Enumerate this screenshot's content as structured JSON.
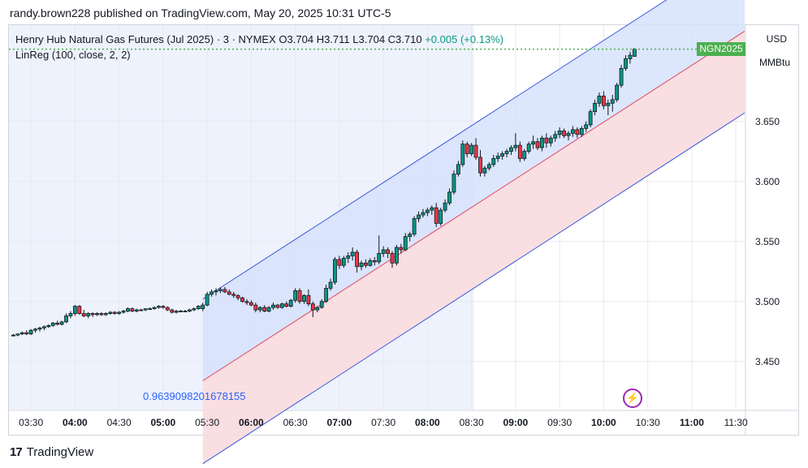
{
  "header": {
    "publish_line": "randy.brown228 published on TradingView.com, May 20, 2025 10:31 UTC-5"
  },
  "legend": {
    "symbol": "Henry Hub Natural Gas Futures (Jul 2025) · 3 · NYMEX",
    "open": "O3.704",
    "high": "H3.711",
    "low": "L3.704",
    "close": "C3.710",
    "change": "+0.005 (+0.13%)",
    "indicator": "LinReg (100, close, 2, 2)"
  },
  "price_axis": {
    "currency": "USD",
    "unit": "MMBtu",
    "ticks": [
      "3.650",
      "3.600",
      "3.550",
      "3.500",
      "3.450"
    ]
  },
  "price_tag": "NGN2025",
  "correlation_label": "0.9639098201678155",
  "time_axis": {
    "ticks": [
      {
        "label": "03:30",
        "bold": false
      },
      {
        "label": "04:00",
        "bold": true
      },
      {
        "label": "04:30",
        "bold": false
      },
      {
        "label": "05:00",
        "bold": true
      },
      {
        "label": "05:30",
        "bold": false
      },
      {
        "label": "06:00",
        "bold": true
      },
      {
        "label": "06:30",
        "bold": false
      },
      {
        "label": "07:00",
        "bold": true
      },
      {
        "label": "07:30",
        "bold": false
      },
      {
        "label": "08:00",
        "bold": true
      },
      {
        "label": "08:30",
        "bold": false
      },
      {
        "label": "09:00",
        "bold": true
      },
      {
        "label": "09:30",
        "bold": false
      },
      {
        "label": "10:00",
        "bold": true
      },
      {
        "label": "10:30",
        "bold": false
      },
      {
        "label": "11:00",
        "bold": true
      },
      {
        "label": "11:30",
        "bold": false
      }
    ]
  },
  "footer": {
    "brand": "TradingView"
  },
  "colors": {
    "up": "#089981",
    "down": "#f23645",
    "candle_body": "#131722",
    "channel_upper_fill": "#d6e2fb",
    "channel_lower_fill": "#f9dcdf",
    "channel_line": "#3a5ad9",
    "midline": "#e04a5f",
    "price_line": "#4caf50"
  },
  "chart_data": {
    "type": "candlestick",
    "timeframe_minutes": 3,
    "ylim": [
      3.41,
      3.73
    ],
    "xlim": [
      "03:15",
      "11:36"
    ],
    "last_price": 3.71,
    "linreg": {
      "period": 100,
      "source": "close",
      "upper_dev": 2,
      "lower_dev": 2,
      "start_time": "05:27",
      "end_time": "11:36",
      "mid_start": 3.434,
      "mid_end": 3.725,
      "upper_start": 3.502,
      "upper_end": 3.793,
      "lower_start": 3.365,
      "lower_end": 3.657
    },
    "candles": [
      {
        "t": "03:18",
        "o": 3.472,
        "h": 3.473,
        "l": 3.471,
        "c": 3.472
      },
      {
        "t": "03:21",
        "o": 3.472,
        "h": 3.473,
        "l": 3.471,
        "c": 3.473
      },
      {
        "t": "03:24",
        "o": 3.473,
        "h": 3.475,
        "l": 3.472,
        "c": 3.474
      },
      {
        "t": "03:27",
        "o": 3.474,
        "h": 3.476,
        "l": 3.472,
        "c": 3.473
      },
      {
        "t": "03:30",
        "o": 3.473,
        "h": 3.477,
        "l": 3.472,
        "c": 3.476
      },
      {
        "t": "03:33",
        "o": 3.476,
        "h": 3.478,
        "l": 3.474,
        "c": 3.477
      },
      {
        "t": "03:36",
        "o": 3.477,
        "h": 3.479,
        "l": 3.475,
        "c": 3.478
      },
      {
        "t": "03:39",
        "o": 3.478,
        "h": 3.48,
        "l": 3.476,
        "c": 3.479
      },
      {
        "t": "03:42",
        "o": 3.479,
        "h": 3.481,
        "l": 3.478,
        "c": 3.48
      },
      {
        "t": "03:45",
        "o": 3.48,
        "h": 3.483,
        "l": 3.479,
        "c": 3.482
      },
      {
        "t": "03:48",
        "o": 3.482,
        "h": 3.484,
        "l": 3.48,
        "c": 3.481
      },
      {
        "t": "03:51",
        "o": 3.481,
        "h": 3.484,
        "l": 3.48,
        "c": 3.483
      },
      {
        "t": "03:54",
        "o": 3.483,
        "h": 3.49,
        "l": 3.482,
        "c": 3.488
      },
      {
        "t": "03:57",
        "o": 3.488,
        "h": 3.492,
        "l": 3.486,
        "c": 3.49
      },
      {
        "t": "04:00",
        "o": 3.49,
        "h": 3.497,
        "l": 3.488,
        "c": 3.496
      },
      {
        "t": "04:03",
        "o": 3.496,
        "h": 3.497,
        "l": 3.489,
        "c": 3.49
      },
      {
        "t": "04:06",
        "o": 3.49,
        "h": 3.493,
        "l": 3.487,
        "c": 3.488
      },
      {
        "t": "04:09",
        "o": 3.488,
        "h": 3.491,
        "l": 3.486,
        "c": 3.49
      },
      {
        "t": "04:12",
        "o": 3.49,
        "h": 3.491,
        "l": 3.487,
        "c": 3.489
      },
      {
        "t": "04:15",
        "o": 3.489,
        "h": 3.491,
        "l": 3.488,
        "c": 3.49
      },
      {
        "t": "04:18",
        "o": 3.49,
        "h": 3.491,
        "l": 3.488,
        "c": 3.489
      },
      {
        "t": "04:21",
        "o": 3.489,
        "h": 3.491,
        "l": 3.488,
        "c": 3.49
      },
      {
        "t": "04:24",
        "o": 3.49,
        "h": 3.492,
        "l": 3.489,
        "c": 3.491
      },
      {
        "t": "04:27",
        "o": 3.491,
        "h": 3.492,
        "l": 3.489,
        "c": 3.49
      },
      {
        "t": "04:30",
        "o": 3.49,
        "h": 3.492,
        "l": 3.489,
        "c": 3.491
      },
      {
        "t": "04:33",
        "o": 3.491,
        "h": 3.493,
        "l": 3.49,
        "c": 3.492
      },
      {
        "t": "04:36",
        "o": 3.492,
        "h": 3.495,
        "l": 3.491,
        "c": 3.494
      },
      {
        "t": "04:39",
        "o": 3.494,
        "h": 3.495,
        "l": 3.491,
        "c": 3.492
      },
      {
        "t": "04:42",
        "o": 3.492,
        "h": 3.494,
        "l": 3.491,
        "c": 3.493
      },
      {
        "t": "04:45",
        "o": 3.493,
        "h": 3.494,
        "l": 3.492,
        "c": 3.493
      },
      {
        "t": "04:48",
        "o": 3.493,
        "h": 3.494,
        "l": 3.492,
        "c": 3.494
      },
      {
        "t": "04:51",
        "o": 3.494,
        "h": 3.495,
        "l": 3.493,
        "c": 3.494
      },
      {
        "t": "04:54",
        "o": 3.494,
        "h": 3.496,
        "l": 3.493,
        "c": 3.495
      },
      {
        "t": "04:57",
        "o": 3.495,
        "h": 3.497,
        "l": 3.494,
        "c": 3.496
      },
      {
        "t": "05:00",
        "o": 3.496,
        "h": 3.497,
        "l": 3.494,
        "c": 3.495
      },
      {
        "t": "05:03",
        "o": 3.495,
        "h": 3.496,
        "l": 3.492,
        "c": 3.493
      },
      {
        "t": "05:06",
        "o": 3.493,
        "h": 3.494,
        "l": 3.49,
        "c": 3.491
      },
      {
        "t": "05:09",
        "o": 3.491,
        "h": 3.493,
        "l": 3.49,
        "c": 3.492
      },
      {
        "t": "05:12",
        "o": 3.492,
        "h": 3.493,
        "l": 3.491,
        "c": 3.492
      },
      {
        "t": "05:15",
        "o": 3.492,
        "h": 3.493,
        "l": 3.491,
        "c": 3.492
      },
      {
        "t": "05:18",
        "o": 3.492,
        "h": 3.494,
        "l": 3.491,
        "c": 3.493
      },
      {
        "t": "05:21",
        "o": 3.493,
        "h": 3.495,
        "l": 3.492,
        "c": 3.494
      },
      {
        "t": "05:24",
        "o": 3.494,
        "h": 3.497,
        "l": 3.493,
        "c": 3.496
      },
      {
        "t": "05:27",
        "o": 3.494,
        "h": 3.499,
        "l": 3.492,
        "c": 3.497
      },
      {
        "t": "05:30",
        "o": 3.497,
        "h": 3.508,
        "l": 3.496,
        "c": 3.506
      },
      {
        "t": "05:33",
        "o": 3.506,
        "h": 3.51,
        "l": 3.504,
        "c": 3.508
      },
      {
        "t": "05:36",
        "o": 3.508,
        "h": 3.511,
        "l": 3.505,
        "c": 3.509
      },
      {
        "t": "05:39",
        "o": 3.509,
        "h": 3.512,
        "l": 3.507,
        "c": 3.51
      },
      {
        "t": "05:42",
        "o": 3.51,
        "h": 3.512,
        "l": 3.507,
        "c": 3.508
      },
      {
        "t": "05:45",
        "o": 3.508,
        "h": 3.51,
        "l": 3.505,
        "c": 3.506
      },
      {
        "t": "05:48",
        "o": 3.506,
        "h": 3.508,
        "l": 3.503,
        "c": 3.505
      },
      {
        "t": "05:51",
        "o": 3.505,
        "h": 3.506,
        "l": 3.501,
        "c": 3.503
      },
      {
        "t": "05:54",
        "o": 3.503,
        "h": 3.504,
        "l": 3.499,
        "c": 3.5
      },
      {
        "t": "05:57",
        "o": 3.5,
        "h": 3.502,
        "l": 3.497,
        "c": 3.499
      },
      {
        "t": "06:00",
        "o": 3.499,
        "h": 3.501,
        "l": 3.496,
        "c": 3.497
      },
      {
        "t": "06:03",
        "o": 3.497,
        "h": 3.499,
        "l": 3.491,
        "c": 3.493
      },
      {
        "t": "06:06",
        "o": 3.493,
        "h": 3.496,
        "l": 3.491,
        "c": 3.495
      },
      {
        "t": "06:09",
        "o": 3.495,
        "h": 3.497,
        "l": 3.491,
        "c": 3.492
      },
      {
        "t": "06:12",
        "o": 3.492,
        "h": 3.496,
        "l": 3.491,
        "c": 3.495
      },
      {
        "t": "06:15",
        "o": 3.495,
        "h": 3.499,
        "l": 3.493,
        "c": 3.497
      },
      {
        "t": "06:18",
        "o": 3.497,
        "h": 3.498,
        "l": 3.494,
        "c": 3.495
      },
      {
        "t": "06:21",
        "o": 3.495,
        "h": 3.499,
        "l": 3.494,
        "c": 3.498
      },
      {
        "t": "06:24",
        "o": 3.498,
        "h": 3.5,
        "l": 3.495,
        "c": 3.496
      },
      {
        "t": "06:27",
        "o": 3.496,
        "h": 3.502,
        "l": 3.495,
        "c": 3.501
      },
      {
        "t": "06:30",
        "o": 3.501,
        "h": 3.511,
        "l": 3.499,
        "c": 3.509
      },
      {
        "t": "06:33",
        "o": 3.509,
        "h": 3.511,
        "l": 3.498,
        "c": 3.5
      },
      {
        "t": "06:36",
        "o": 3.5,
        "h": 3.506,
        "l": 3.498,
        "c": 3.505
      },
      {
        "t": "06:39",
        "o": 3.505,
        "h": 3.51,
        "l": 3.496,
        "c": 3.498
      },
      {
        "t": "06:42",
        "o": 3.498,
        "h": 3.5,
        "l": 3.487,
        "c": 3.493
      },
      {
        "t": "06:45",
        "o": 3.493,
        "h": 3.496,
        "l": 3.491,
        "c": 3.495
      },
      {
        "t": "06:48",
        "o": 3.495,
        "h": 3.502,
        "l": 3.494,
        "c": 3.5
      },
      {
        "t": "06:51",
        "o": 3.5,
        "h": 3.514,
        "l": 3.499,
        "c": 3.511
      },
      {
        "t": "06:54",
        "o": 3.511,
        "h": 3.519,
        "l": 3.509,
        "c": 3.516
      },
      {
        "t": "06:57",
        "o": 3.516,
        "h": 3.537,
        "l": 3.514,
        "c": 3.535
      },
      {
        "t": "07:00",
        "o": 3.535,
        "h": 3.538,
        "l": 3.527,
        "c": 3.53
      },
      {
        "t": "07:03",
        "o": 3.53,
        "h": 3.538,
        "l": 3.528,
        "c": 3.536
      },
      {
        "t": "07:06",
        "o": 3.536,
        "h": 3.541,
        "l": 3.532,
        "c": 3.538
      },
      {
        "t": "07:09",
        "o": 3.538,
        "h": 3.545,
        "l": 3.534,
        "c": 3.541
      },
      {
        "t": "07:12",
        "o": 3.541,
        "h": 3.543,
        "l": 3.524,
        "c": 3.529
      },
      {
        "t": "07:15",
        "o": 3.529,
        "h": 3.534,
        "l": 3.526,
        "c": 3.532
      },
      {
        "t": "07:18",
        "o": 3.532,
        "h": 3.535,
        "l": 3.528,
        "c": 3.53
      },
      {
        "t": "07:21",
        "o": 3.53,
        "h": 3.536,
        "l": 3.529,
        "c": 3.534
      },
      {
        "t": "07:24",
        "o": 3.534,
        "h": 3.537,
        "l": 3.53,
        "c": 3.533
      },
      {
        "t": "07:27",
        "o": 3.533,
        "h": 3.555,
        "l": 3.531,
        "c": 3.54
      },
      {
        "t": "07:30",
        "o": 3.54,
        "h": 3.546,
        "l": 3.537,
        "c": 3.543
      },
      {
        "t": "07:33",
        "o": 3.543,
        "h": 3.545,
        "l": 3.536,
        "c": 3.54
      },
      {
        "t": "07:36",
        "o": 3.54,
        "h": 3.542,
        "l": 3.528,
        "c": 3.532
      },
      {
        "t": "07:39",
        "o": 3.532,
        "h": 3.547,
        "l": 3.53,
        "c": 3.545
      },
      {
        "t": "07:42",
        "o": 3.545,
        "h": 3.548,
        "l": 3.54,
        "c": 3.543
      },
      {
        "t": "07:45",
        "o": 3.543,
        "h": 3.557,
        "l": 3.542,
        "c": 3.554
      },
      {
        "t": "07:48",
        "o": 3.554,
        "h": 3.558,
        "l": 3.55,
        "c": 3.556
      },
      {
        "t": "07:51",
        "o": 3.556,
        "h": 3.571,
        "l": 3.554,
        "c": 3.569
      },
      {
        "t": "07:54",
        "o": 3.569,
        "h": 3.575,
        "l": 3.566,
        "c": 3.572
      },
      {
        "t": "07:57",
        "o": 3.572,
        "h": 3.577,
        "l": 3.57,
        "c": 3.574
      },
      {
        "t": "08:00",
        "o": 3.574,
        "h": 3.578,
        "l": 3.571,
        "c": 3.576
      },
      {
        "t": "08:03",
        "o": 3.576,
        "h": 3.58,
        "l": 3.572,
        "c": 3.578
      },
      {
        "t": "08:06",
        "o": 3.578,
        "h": 3.582,
        "l": 3.562,
        "c": 3.565
      },
      {
        "t": "08:09",
        "o": 3.565,
        "h": 3.578,
        "l": 3.563,
        "c": 3.576
      },
      {
        "t": "08:12",
        "o": 3.576,
        "h": 3.585,
        "l": 3.574,
        "c": 3.582
      },
      {
        "t": "08:15",
        "o": 3.582,
        "h": 3.594,
        "l": 3.58,
        "c": 3.591
      },
      {
        "t": "08:18",
        "o": 3.591,
        "h": 3.609,
        "l": 3.589,
        "c": 3.606
      },
      {
        "t": "08:21",
        "o": 3.606,
        "h": 3.617,
        "l": 3.604,
        "c": 3.614
      },
      {
        "t": "08:24",
        "o": 3.614,
        "h": 3.634,
        "l": 3.612,
        "c": 3.631
      },
      {
        "t": "08:27",
        "o": 3.631,
        "h": 3.633,
        "l": 3.62,
        "c": 3.623
      },
      {
        "t": "08:30",
        "o": 3.623,
        "h": 3.632,
        "l": 3.621,
        "c": 3.63
      },
      {
        "t": "08:33",
        "o": 3.63,
        "h": 3.636,
        "l": 3.618,
        "c": 3.62
      },
      {
        "t": "08:36",
        "o": 3.62,
        "h": 3.626,
        "l": 3.604,
        "c": 3.607
      },
      {
        "t": "08:39",
        "o": 3.607,
        "h": 3.613,
        "l": 3.604,
        "c": 3.611
      },
      {
        "t": "08:42",
        "o": 3.611,
        "h": 3.616,
        "l": 3.609,
        "c": 3.614
      },
      {
        "t": "08:45",
        "o": 3.614,
        "h": 3.622,
        "l": 3.612,
        "c": 3.619
      },
      {
        "t": "08:48",
        "o": 3.619,
        "h": 3.624,
        "l": 3.616,
        "c": 3.621
      },
      {
        "t": "08:51",
        "o": 3.621,
        "h": 3.625,
        "l": 3.618,
        "c": 3.623
      },
      {
        "t": "08:54",
        "o": 3.623,
        "h": 3.627,
        "l": 3.62,
        "c": 3.625
      },
      {
        "t": "08:57",
        "o": 3.625,
        "h": 3.63,
        "l": 3.622,
        "c": 3.628
      },
      {
        "t": "09:00",
        "o": 3.628,
        "h": 3.64,
        "l": 3.625,
        "c": 3.63
      },
      {
        "t": "09:03",
        "o": 3.63,
        "h": 3.633,
        "l": 3.616,
        "c": 3.619
      },
      {
        "t": "09:06",
        "o": 3.619,
        "h": 3.627,
        "l": 3.617,
        "c": 3.625
      },
      {
        "t": "09:09",
        "o": 3.625,
        "h": 3.633,
        "l": 3.623,
        "c": 3.631
      },
      {
        "t": "09:12",
        "o": 3.631,
        "h": 3.638,
        "l": 3.627,
        "c": 3.633
      },
      {
        "t": "09:15",
        "o": 3.633,
        "h": 3.636,
        "l": 3.626,
        "c": 3.628
      },
      {
        "t": "09:18",
        "o": 3.628,
        "h": 3.638,
        "l": 3.625,
        "c": 3.636
      },
      {
        "t": "09:21",
        "o": 3.636,
        "h": 3.64,
        "l": 3.628,
        "c": 3.632
      },
      {
        "t": "09:24",
        "o": 3.632,
        "h": 3.638,
        "l": 3.629,
        "c": 3.636
      },
      {
        "t": "09:27",
        "o": 3.636,
        "h": 3.642,
        "l": 3.633,
        "c": 3.639
      },
      {
        "t": "09:30",
        "o": 3.639,
        "h": 3.645,
        "l": 3.636,
        "c": 3.642
      },
      {
        "t": "09:33",
        "o": 3.642,
        "h": 3.644,
        "l": 3.636,
        "c": 3.638
      },
      {
        "t": "09:36",
        "o": 3.638,
        "h": 3.642,
        "l": 3.634,
        "c": 3.64
      },
      {
        "t": "09:39",
        "o": 3.64,
        "h": 3.646,
        "l": 3.637,
        "c": 3.643
      },
      {
        "t": "09:42",
        "o": 3.643,
        "h": 3.645,
        "l": 3.636,
        "c": 3.639
      },
      {
        "t": "09:45",
        "o": 3.639,
        "h": 3.646,
        "l": 3.637,
        "c": 3.644
      },
      {
        "t": "09:48",
        "o": 3.644,
        "h": 3.65,
        "l": 3.641,
        "c": 3.647
      },
      {
        "t": "09:51",
        "o": 3.647,
        "h": 3.66,
        "l": 3.645,
        "c": 3.658
      },
      {
        "t": "09:54",
        "o": 3.658,
        "h": 3.668,
        "l": 3.655,
        "c": 3.665
      },
      {
        "t": "09:57",
        "o": 3.665,
        "h": 3.674,
        "l": 3.662,
        "c": 3.671
      },
      {
        "t": "10:00",
        "o": 3.671,
        "h": 3.675,
        "l": 3.66,
        "c": 3.663
      },
      {
        "t": "10:03",
        "o": 3.663,
        "h": 3.668,
        "l": 3.655,
        "c": 3.665
      },
      {
        "t": "10:06",
        "o": 3.665,
        "h": 3.672,
        "l": 3.658,
        "c": 3.668
      },
      {
        "t": "10:09",
        "o": 3.668,
        "h": 3.682,
        "l": 3.666,
        "c": 3.68
      },
      {
        "t": "10:12",
        "o": 3.68,
        "h": 3.697,
        "l": 3.678,
        "c": 3.694
      },
      {
        "t": "10:15",
        "o": 3.694,
        "h": 3.705,
        "l": 3.692,
        "c": 3.702
      },
      {
        "t": "10:18",
        "o": 3.702,
        "h": 3.708,
        "l": 3.698,
        "c": 3.705
      },
      {
        "t": "10:21",
        "o": 3.704,
        "h": 3.711,
        "l": 3.704,
        "c": 3.71
      }
    ]
  }
}
